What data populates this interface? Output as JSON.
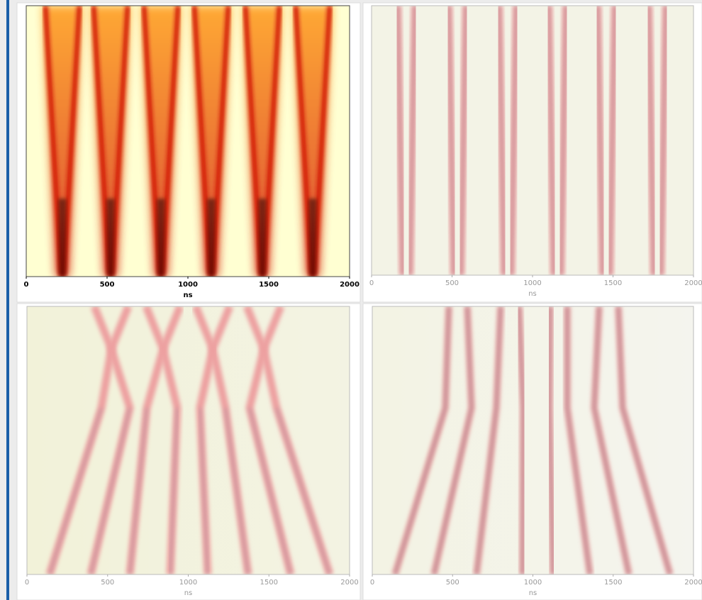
{
  "chart_data": [
    {
      "type": "heatmap",
      "xlabel": "ns",
      "xlim": [
        0,
        2000
      ],
      "xticks": [
        0,
        500,
        1000,
        1500,
        2000
      ]
    },
    {
      "type": "heatmap",
      "xlabel": "ns",
      "xlim": [
        0,
        2000
      ],
      "xticks": [
        0,
        500,
        1000,
        1500,
        2000
      ]
    },
    {
      "type": "heatmap",
      "xlabel": "ns",
      "xlim": [
        0,
        2000
      ],
      "xticks": [
        0,
        500,
        1000,
        1500,
        2000
      ]
    },
    {
      "type": "heatmap",
      "xlabel": "ns",
      "xlim": [
        0,
        2000
      ],
      "xticks": [
        0,
        500,
        1000,
        1500,
        2000
      ]
    }
  ]
}
